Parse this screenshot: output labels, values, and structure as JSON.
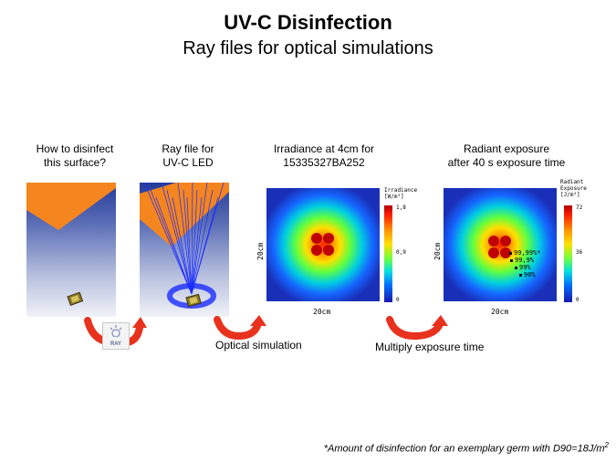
{
  "title": "UV-C Disinfection",
  "subtitle": "Ray files for optical simulations",
  "captions": {
    "surface_line1": "How to disinfect",
    "surface_line2": "this surface?",
    "rayfile_line1": "Ray file for",
    "rayfile_line2": "UV-C LED",
    "irradiance_line1": "Irradiance  at 4cm for",
    "irradiance_line2": "15335327BA252",
    "exposure_line1": "Radiant exposure",
    "exposure_line2": "after 40 s exposure time"
  },
  "irradiance_map": {
    "xlabel": "20cm",
    "ylabel": "20cm",
    "colorbar_title_line1": "Irradiance",
    "colorbar_title_line2": "[W/m²]",
    "ticks": [
      "1,8",
      "0,9",
      "0"
    ]
  },
  "exposure_map": {
    "xlabel": "20cm",
    "ylabel": "20cm",
    "colorbar_title_line1": "Radiant",
    "colorbar_title_line2": "Exposure",
    "colorbar_title_line3": "[J/m²]",
    "ticks": [
      "72",
      "36",
      "0"
    ],
    "annotations": [
      "99,99%*",
      "99,9%",
      "99%",
      "90%"
    ]
  },
  "ray_logo_text": "RAY",
  "flow_labels": {
    "optical_simulation": "Optical simulation",
    "multiply_exposure": "Multiply exposure time"
  },
  "footnote_main": "*Amount of disinfection for an exemplary  germ with D90=18J/m",
  "footnote_sup": "2",
  "colors": {
    "arrow_red": "#e8321e",
    "surface_orange": "#f5851f",
    "ray_blue": "#1a2cff"
  }
}
